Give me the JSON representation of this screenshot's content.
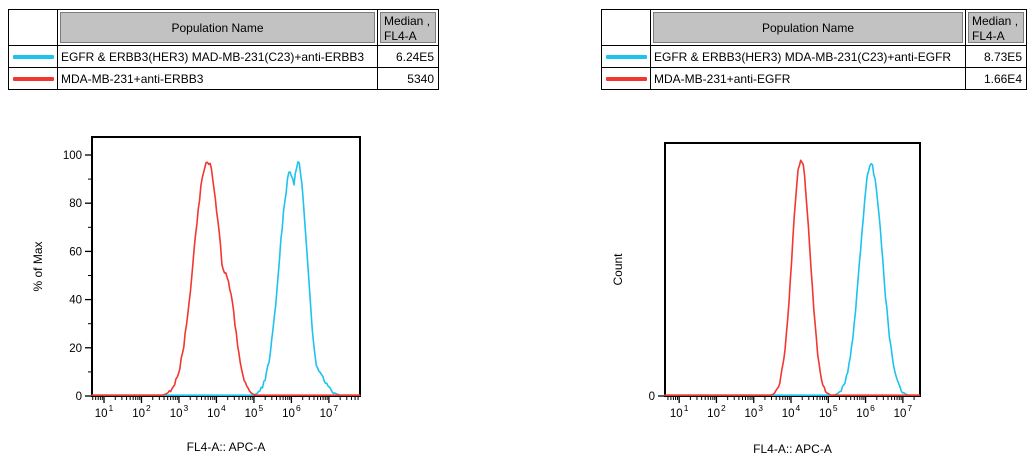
{
  "window": {
    "background": "#ffffff"
  },
  "tables": {
    "left": {
      "header": {
        "population_col": "Population Name",
        "median_col_line1": "Median ,",
        "median_col_line2": "FL4-A"
      },
      "rows": [
        {
          "swatch_color": "#1ec2ef",
          "name": "EGFR & ERBB3(HER3) MAD-MB-231(C23)+anti-ERBB3",
          "median": "6.24E5"
        },
        {
          "swatch_color": "#f2372f",
          "name": "MDA-MB-231+anti-ERBB3",
          "median": "5340"
        }
      ]
    },
    "right": {
      "header": {
        "population_col": "Population Name",
        "median_col_line1": "Median ,",
        "median_col_line2": "FL4-A"
      },
      "rows": [
        {
          "swatch_color": "#1ec2ef",
          "name": "EGFR & ERBB3(HER3) MDA-MB-231(C23)+anti-EGFR",
          "median": "8.73E5"
        },
        {
          "swatch_color": "#f2372f",
          "name": "MDA-MB-231+anti-EGFR",
          "median": "1.66E4"
        }
      ]
    }
  },
  "chart_data": [
    {
      "type": "line",
      "subtype": "flow-cytometry-histogram",
      "title": "",
      "xlabel": "FL4-A:: APC-A",
      "ylabel": "% of Max",
      "xscale": "log10",
      "xlim_log10": [
        0.68,
        7.83
      ],
      "x_major_ticks_log10": [
        1,
        2,
        3,
        4,
        5,
        6,
        7
      ],
      "x_tick_base": "10",
      "ylim": [
        0,
        107
      ],
      "y_major_ticks": [
        0,
        20,
        40,
        60,
        80,
        100
      ],
      "y_minor_ticks": [
        10,
        30,
        50,
        70,
        90
      ],
      "grid": false,
      "legend_position": "table-above",
      "series": [
        {
          "name": "EGFR & ERBB3(HER3) MAD-MB-231(C23)+anti-ERBB3",
          "color": "#1ec2ef",
          "median": "6.24E5",
          "peaks": [
            {
              "center_log10": 5.98,
              "sigma_decades": 0.3,
              "height": 93
            },
            {
              "center_log10": 6.18,
              "sigma_decades": 0.24,
              "height": 96
            },
            {
              "center_log10": 6.5,
              "sigma_decades": 0.3,
              "height": 14
            }
          ]
        },
        {
          "name": "MDA-MB-231+anti-ERBB3",
          "color": "#f2372f",
          "median": "5340",
          "peaks": [
            {
              "center_log10": 3.76,
              "sigma_decades": 0.36,
              "height": 98
            },
            {
              "center_log10": 4.22,
              "sigma_decades": 0.26,
              "height": 52
            }
          ]
        }
      ]
    },
    {
      "type": "line",
      "subtype": "flow-cytometry-histogram",
      "title": "",
      "xlabel": "FL4-A:: APC-A",
      "ylabel": "Count",
      "xscale": "log10",
      "xlim_log10": [
        0.62,
        7.46
      ],
      "x_major_ticks_log10": [
        1,
        2,
        3,
        4,
        5,
        6,
        7
      ],
      "x_tick_base": "10",
      "ylim": [
        0,
        100
      ],
      "y_major_ticks": [
        0
      ],
      "y_minor_ticks": [],
      "grid": false,
      "legend_position": "table-above",
      "series": [
        {
          "name": "EGFR & ERBB3(HER3) MDA-MB-231(C23)+anti-EGFR",
          "color": "#1ec2ef",
          "median": "8.73E5",
          "peaks": [
            {
              "center_log10": 6.15,
              "sigma_decades": 0.3,
              "height": 91
            },
            {
              "center_log10": 6.62,
              "sigma_decades": 0.14,
              "height": 9
            }
          ]
        },
        {
          "name": "MDA-MB-231+anti-EGFR",
          "color": "#f2372f",
          "median": "1.66E4",
          "peaks": [
            {
              "center_log10": 4.27,
              "sigma_decades": 0.24,
              "height": 94
            }
          ]
        }
      ]
    }
  ]
}
